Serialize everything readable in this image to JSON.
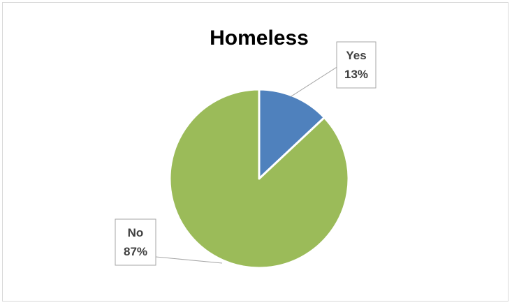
{
  "chart_data": {
    "type": "pie",
    "title": "Homeless",
    "slices": [
      {
        "label": "Yes",
        "value": 13,
        "value_label": "13%",
        "color": "#4f81bd"
      },
      {
        "label": "No",
        "value": 87,
        "value_label": "87%",
        "color": "#9bbb59"
      }
    ],
    "legend": "none",
    "data_labels": "callout"
  }
}
